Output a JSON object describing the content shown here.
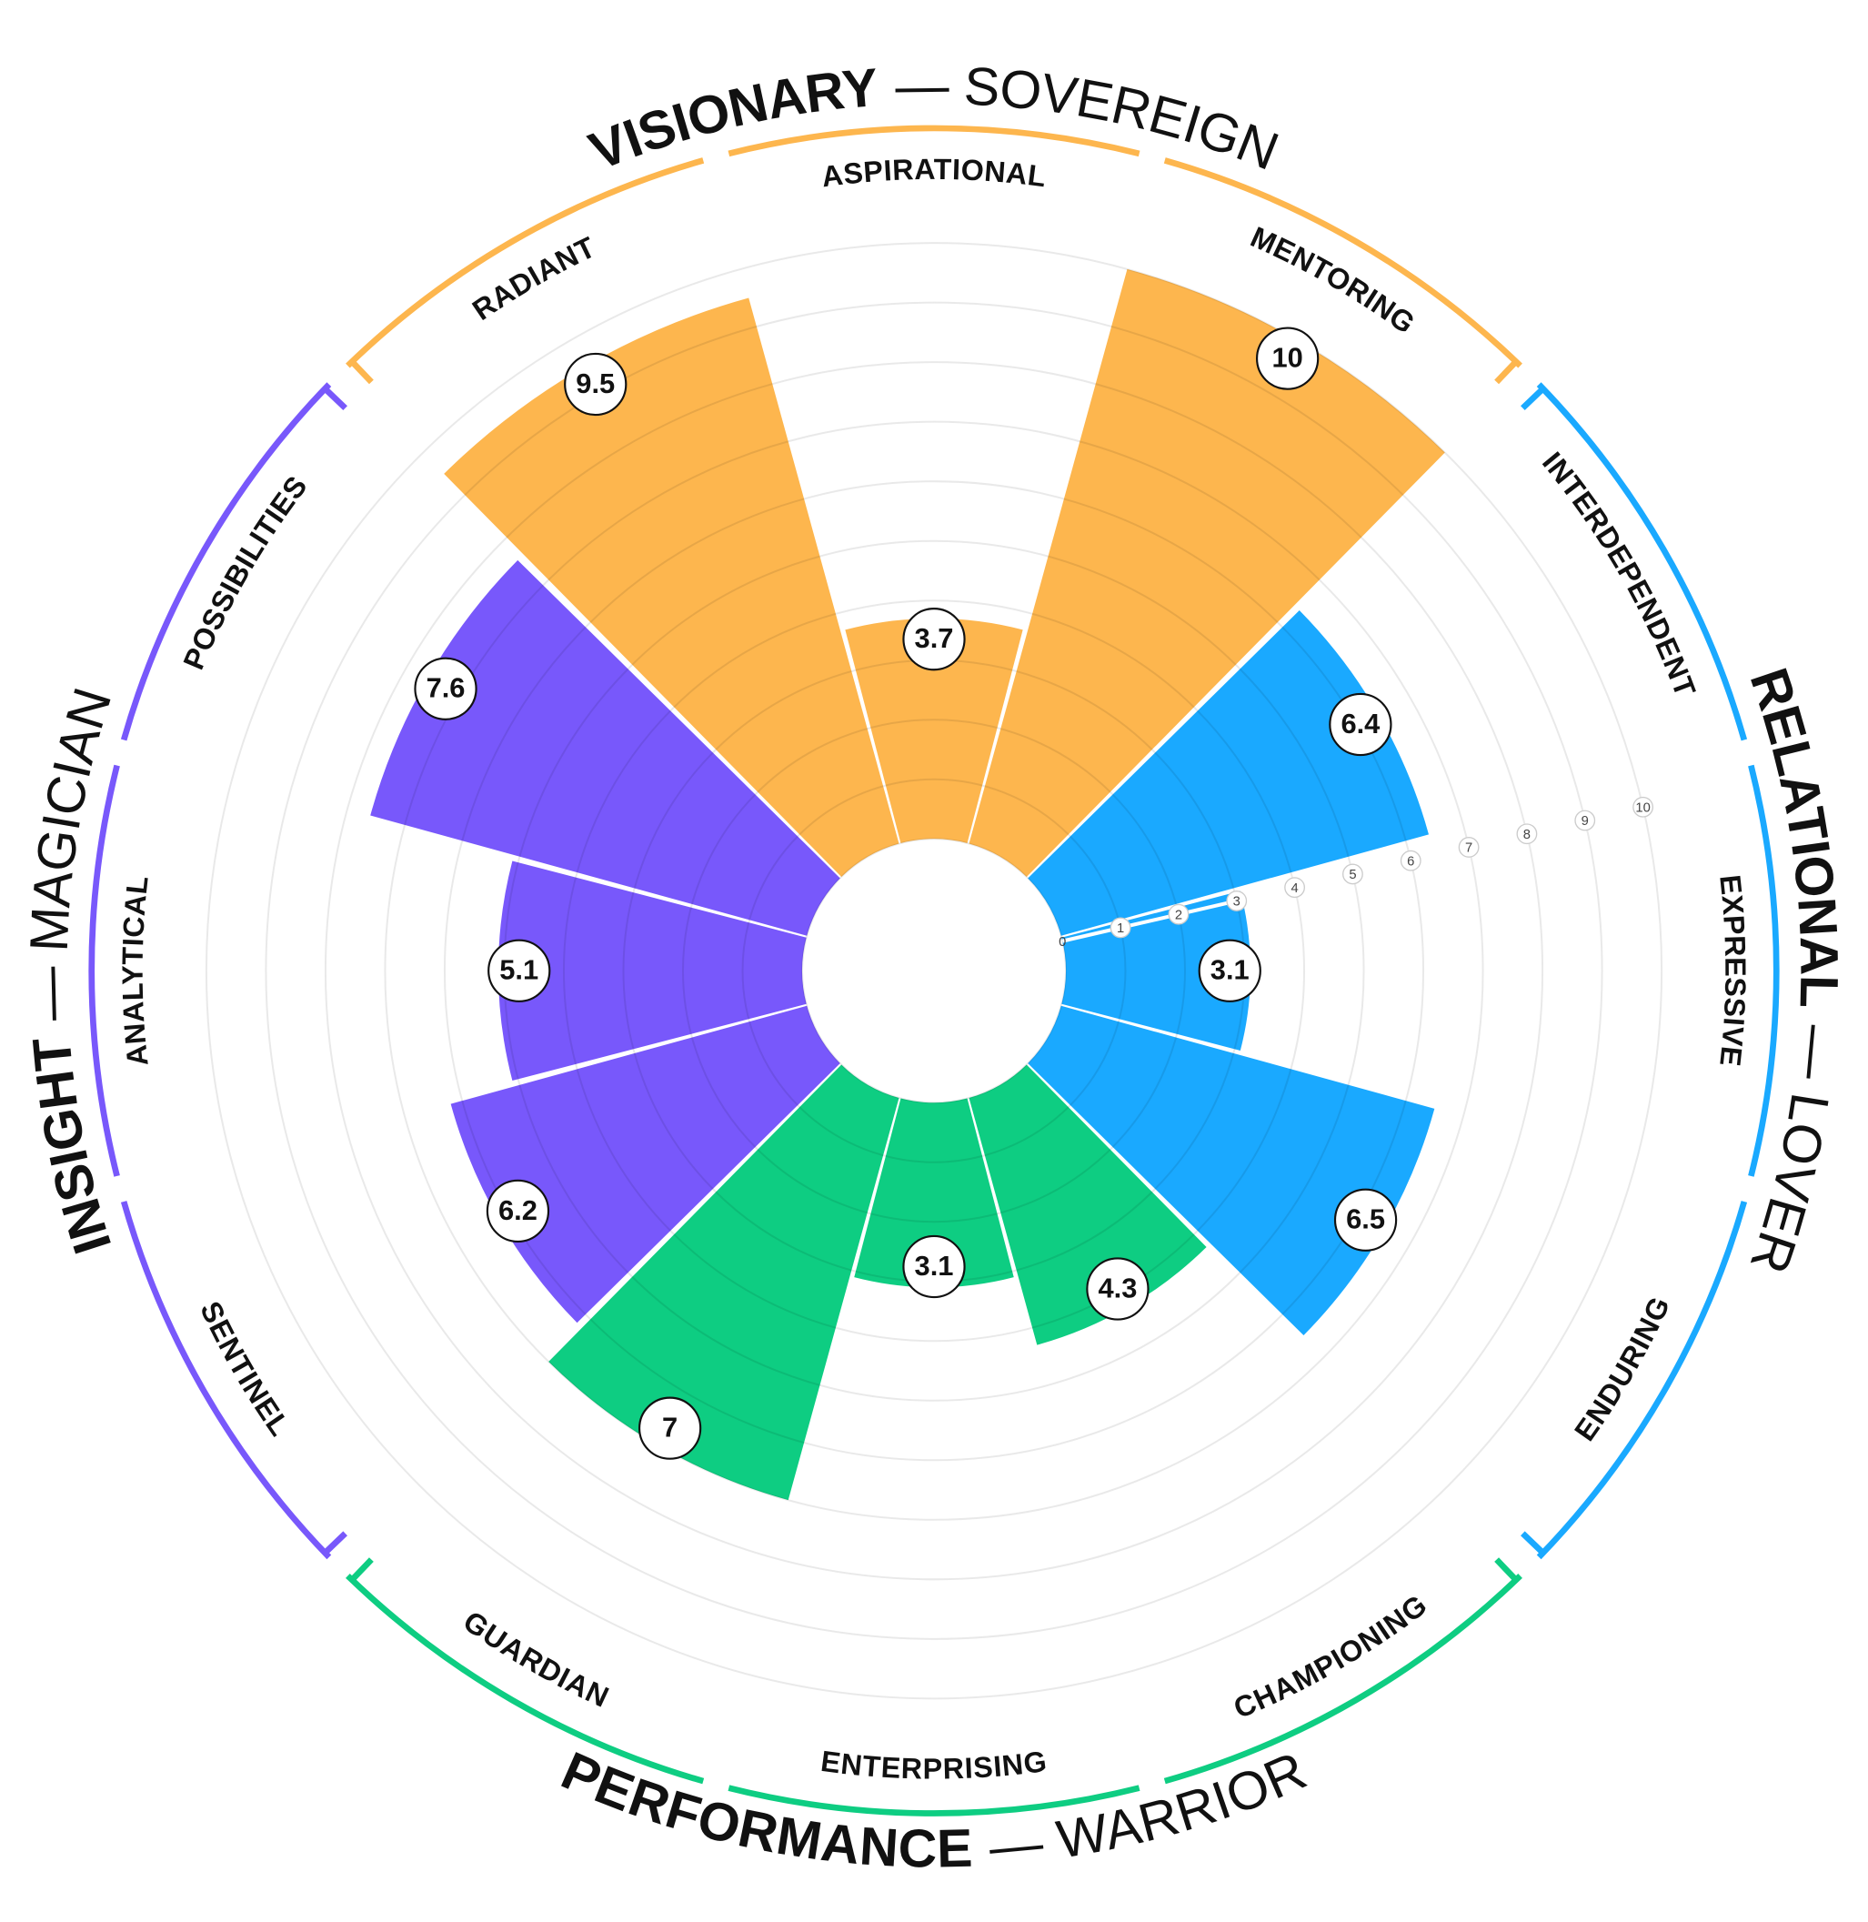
{
  "chart_data": {
    "type": "polar_area",
    "rlim": [
      0,
      10
    ],
    "rticks": [
      0,
      1,
      2,
      3,
      4,
      5,
      6,
      7,
      8,
      9,
      10
    ],
    "grid": true,
    "series": [
      {
        "name": "VISIONARY",
        "archetype": "— SOVEREIGN",
        "color": "#fdb64e",
        "categories": [
          "RADIANT",
          "ASPIRATIONAL",
          "MENTORING"
        ],
        "values": [
          9.5,
          3.7,
          10
        ]
      },
      {
        "name": "RELATIONAL",
        "archetype": "— LOVER",
        "color": "#1aa9ff",
        "categories": [
          "INTERDEPENDENT",
          "EXPRESSIVE",
          "ENDURING"
        ],
        "values": [
          6.4,
          3.1,
          6.5
        ]
      },
      {
        "name": "PERFORMANCE",
        "archetype": "— WARRIOR",
        "color": "#0ecd82",
        "categories": [
          "CHAMPIONING",
          "ENTERPRISING",
          "GUARDIAN"
        ],
        "values": [
          4.3,
          3.1,
          7
        ]
      },
      {
        "name": "INSIGHT",
        "archetype": "— MAGICIAN",
        "color": "#7858fb",
        "categories": [
          "SENTINEL",
          "ANALYTICAL",
          "POSSIBILITIES"
        ],
        "values": [
          6.2,
          5.1,
          7.6
        ]
      }
    ]
  }
}
